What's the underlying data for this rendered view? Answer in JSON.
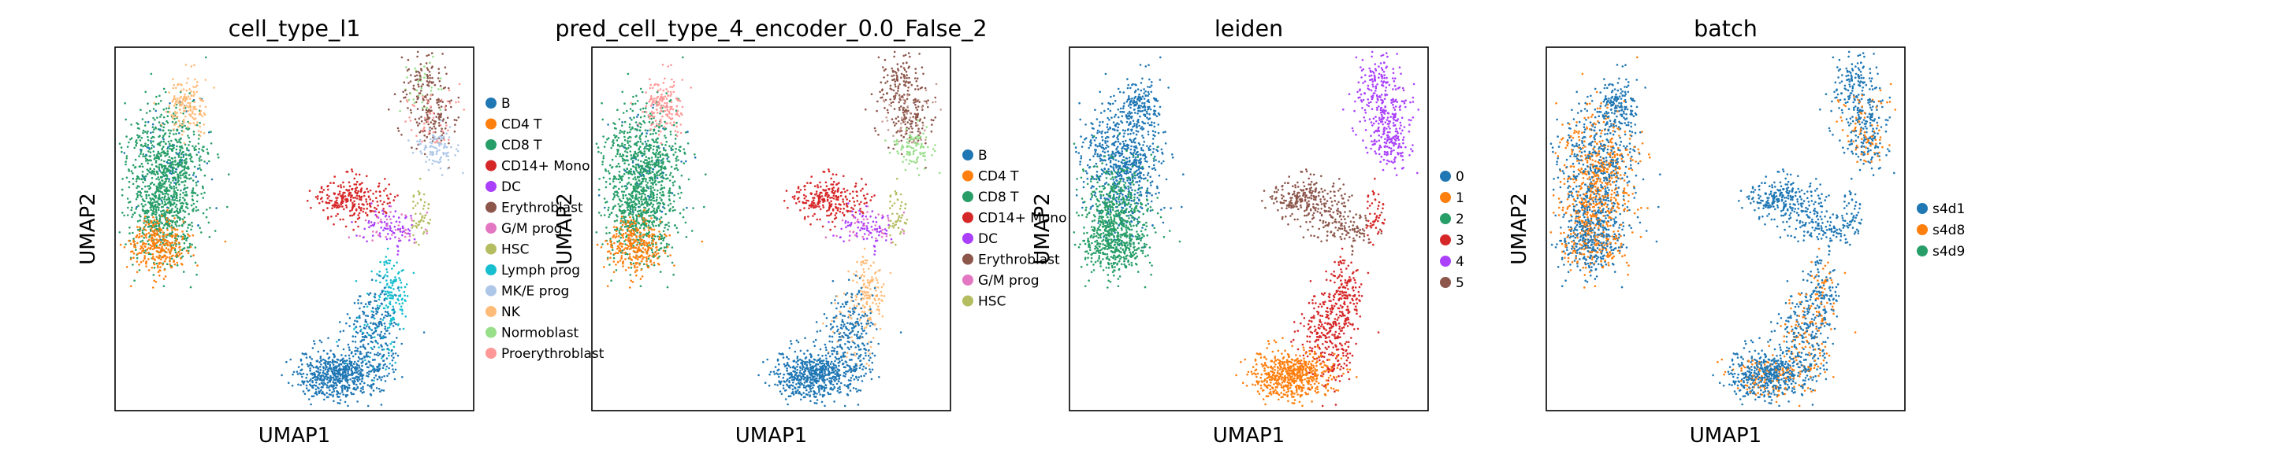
{
  "chart_data": [
    {
      "type": "scatter",
      "title": "cell_type_l1",
      "xlabel": "UMAP1",
      "ylabel": "UMAP2",
      "grid": false,
      "legend_position": "right",
      "legend": [
        {
          "label": "B",
          "color": "#1f77b4"
        },
        {
          "label": "CD4 T",
          "color": "#ff7f0e"
        },
        {
          "label": "CD8 T",
          "color": "#279e68"
        },
        {
          "label": "CD14+ Mono",
          "color": "#d62728"
        },
        {
          "label": "DC",
          "color": "#aa40fc"
        },
        {
          "label": "Erythroblast",
          "color": "#8c564b"
        },
        {
          "label": "G/M prog",
          "color": "#e377c2"
        },
        {
          "label": "HSC",
          "color": "#b5bd61"
        },
        {
          "label": "Lymph prog",
          "color": "#17becf"
        },
        {
          "label": "MK/E prog",
          "color": "#aec7e8"
        },
        {
          "label": "NK",
          "color": "#ffbb78"
        },
        {
          "label": "Normoblast",
          "color": "#98df8a"
        },
        {
          "label": "Proerythroblast",
          "color": "#ff9896"
        }
      ]
    },
    {
      "type": "scatter",
      "title": "pred_cell_type_4_encoder_0.0_False_2",
      "xlabel": "UMAP1",
      "ylabel": "UMAP2",
      "grid": false,
      "legend_position": "right",
      "legend": [
        {
          "label": "B",
          "color": "#1f77b4"
        },
        {
          "label": "CD4 T",
          "color": "#ff7f0e"
        },
        {
          "label": "CD8 T",
          "color": "#279e68"
        },
        {
          "label": "CD14+ Mono",
          "color": "#d62728"
        },
        {
          "label": "DC",
          "color": "#aa40fc"
        },
        {
          "label": "Erythroblast",
          "color": "#8c564b"
        },
        {
          "label": "G/M prog",
          "color": "#e377c2"
        },
        {
          "label": "HSC",
          "color": "#b5bd61"
        }
      ]
    },
    {
      "type": "scatter",
      "title": "leiden",
      "xlabel": "UMAP1",
      "ylabel": "UMAP2",
      "grid": false,
      "legend_position": "right",
      "legend": [
        {
          "label": "0",
          "color": "#1f77b4"
        },
        {
          "label": "1",
          "color": "#ff7f0e"
        },
        {
          "label": "2",
          "color": "#279e68"
        },
        {
          "label": "3",
          "color": "#d62728"
        },
        {
          "label": "4",
          "color": "#aa40fc"
        },
        {
          "label": "5",
          "color": "#8c564b"
        }
      ]
    },
    {
      "type": "scatter",
      "title": "batch",
      "xlabel": "UMAP1",
      "ylabel": "UMAP2",
      "grid": false,
      "legend_position": "right",
      "legend": [
        {
          "label": "s4d1",
          "color": "#1f77b4"
        },
        {
          "label": "s4d8",
          "color": "#ff7f0e"
        },
        {
          "label": "s4d9",
          "color": "#279e68"
        }
      ]
    }
  ]
}
